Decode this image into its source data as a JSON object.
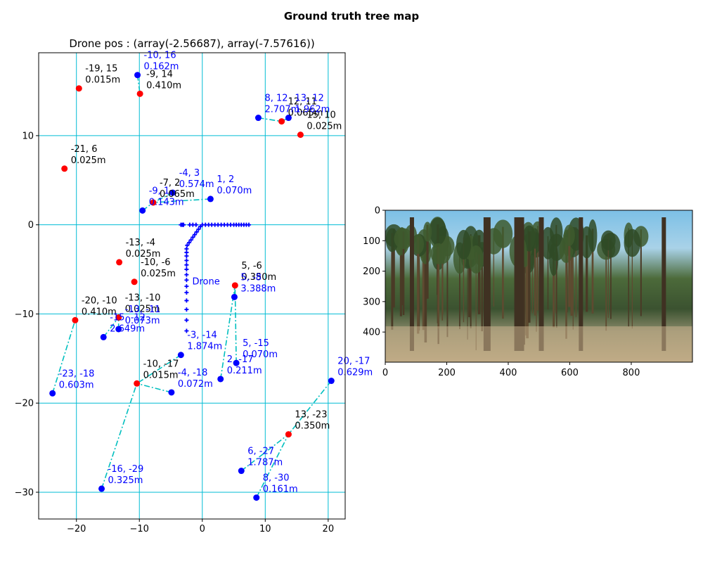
{
  "figure": {
    "suptitle": "Ground truth tree map"
  },
  "colors": {
    "grid": "#00bcd4",
    "red": "#ff0000",
    "blue": "#0000ff",
    "link": "#00bfbf",
    "text_blue": "#0000ff",
    "text_black": "#000000"
  },
  "chart_data": [
    {
      "type": "scatter",
      "title": "Drone pos : (array(-2.56687), array(-7.57616))",
      "xlabel": "",
      "ylabel": "",
      "xlim": [
        -26,
        22.7
      ],
      "ylim": [
        -33,
        19.3
      ],
      "xticks": [
        -20,
        -10,
        0,
        10,
        20
      ],
      "yticks": [
        10,
        0,
        -10,
        -20,
        -30
      ],
      "grid": true,
      "red_trees": [
        {
          "x": -19.6,
          "y": 15.3,
          "label1": "-19, 15",
          "label2": "0.015m"
        },
        {
          "x": -9.9,
          "y": 14.7,
          "label1": "-9, 14",
          "label2": "0.410m"
        },
        {
          "x": -21.9,
          "y": 6.3,
          "label1": "-21, 6",
          "label2": "0.025m"
        },
        {
          "x": -7.8,
          "y": 2.5,
          "label1": "-7, 2",
          "label2": "0.065m"
        },
        {
          "x": 12.6,
          "y": 11.6,
          "label1": "12, 11",
          "label2": "0.065m"
        },
        {
          "x": 15.6,
          "y": 10.1,
          "label1": "15, 10",
          "label2": "0.025m"
        },
        {
          "x": -13.2,
          "y": -4.2,
          "label1": "-13, -4",
          "label2": "0.025m"
        },
        {
          "x": -10.8,
          "y": -6.4,
          "label1": "-10, -6",
          "label2": "0.025m"
        },
        {
          "x": 5.2,
          "y": -6.8,
          "label1": "5, -6",
          "label2": "0.350m"
        },
        {
          "x": -20.2,
          "y": -10.7,
          "label1": "-20, -10",
          "label2": "0.410m"
        },
        {
          "x": -13.3,
          "y": -10.4,
          "label1": "-13, -10",
          "label2": "0.025m"
        },
        {
          "x": -10.4,
          "y": -17.8,
          "label1": "-10, -17",
          "label2": "0.015m"
        },
        {
          "x": 13.7,
          "y": -23.5,
          "label1": "13, -23",
          "label2": "0.350m"
        }
      ],
      "blue_trees": [
        {
          "x": -10.3,
          "y": 16.8,
          "label1": "-10, 16",
          "label2": "0.162m",
          "link_to": [
            -9.9,
            14.7
          ]
        },
        {
          "x": 8.9,
          "y": 12.0,
          "label1": "8, 12",
          "label2": "2.707m",
          "link_to": [
            12.6,
            11.6
          ]
        },
        {
          "x": 13.7,
          "y": 12.0,
          "label1": "13, 12",
          "label2": "1.962m",
          "link_to": [
            12.6,
            11.6
          ]
        },
        {
          "x": -4.7,
          "y": 3.6,
          "label1": "-4, 3",
          "label2": "0.574m",
          "link_to": [
            -7.8,
            2.5
          ]
        },
        {
          "x": 1.3,
          "y": 2.9,
          "label1": "1, 2",
          "label2": "0.070m",
          "link_to": [
            -7.8,
            2.5
          ]
        },
        {
          "x": -9.5,
          "y": 1.6,
          "label1": "-9, 1",
          "label2": "0.143m",
          "link_to": [
            -7.8,
            2.5
          ]
        },
        {
          "x": 5.1,
          "y": -8.1,
          "label1": "5, -8",
          "label2": "3.388m",
          "link_to": [
            5.2,
            -6.8
          ]
        },
        {
          "x": -13.3,
          "y": -11.7,
          "label1": "-13, -11",
          "label2": "0.073m",
          "link_to": [
            -13.3,
            -10.4
          ]
        },
        {
          "x": -15.7,
          "y": -12.6,
          "label1": "-15, -12",
          "label2": "2.649m",
          "link_to": [
            -13.3,
            -10.4
          ]
        },
        {
          "x": -3.4,
          "y": -14.6,
          "label1": "-3, -14",
          "label2": "1.874m",
          "link_to": [
            -10.4,
            -17.8
          ]
        },
        {
          "x": 5.4,
          "y": -15.5,
          "label1": "5, -15",
          "label2": "0.070m",
          "link_to": [
            5.2,
            -6.8
          ]
        },
        {
          "x": 2.9,
          "y": -17.3,
          "label1": "2, -17",
          "label2": "0.211m",
          "link_to": [
            5.2,
            -6.8
          ]
        },
        {
          "x": -4.9,
          "y": -18.8,
          "label1": "-4, -18",
          "label2": "0.072m",
          "link_to": [
            -10.4,
            -17.8
          ]
        },
        {
          "x": -23.8,
          "y": -18.9,
          "label1": "-23, -18",
          "label2": "0.603m",
          "link_to": [
            -20.2,
            -10.7
          ]
        },
        {
          "x": 20.5,
          "y": -17.5,
          "label1": "20, -17",
          "label2": "0.629m",
          "link_to": [
            13.7,
            -23.5
          ]
        },
        {
          "x": 6.2,
          "y": -27.6,
          "label1": "6, -27",
          "label2": "1.787m",
          "link_to": [
            13.7,
            -23.5
          ]
        },
        {
          "x": -16.0,
          "y": -29.6,
          "label1": "-16, -29",
          "label2": "0.325m",
          "link_to": [
            -10.4,
            -17.8
          ]
        },
        {
          "x": 8.6,
          "y": -30.6,
          "label1": "8, -30",
          "label2": "0.161m",
          "link_to": [
            13.7,
            -23.5
          ]
        }
      ],
      "drone_path": [
        [
          7.4,
          0.0
        ],
        [
          7.0,
          0.0
        ],
        [
          6.6,
          0.0
        ],
        [
          6.2,
          0.0
        ],
        [
          5.8,
          0.0
        ],
        [
          5.4,
          0.0
        ],
        [
          5.0,
          0.0
        ],
        [
          4.5,
          0.0
        ],
        [
          4.0,
          0.0
        ],
        [
          3.5,
          0.0
        ],
        [
          3.0,
          0.0
        ],
        [
          2.5,
          0.0
        ],
        [
          2.0,
          0.0
        ],
        [
          1.5,
          0.0
        ],
        [
          1.0,
          0.0
        ],
        [
          0.5,
          0.0
        ],
        [
          0.0,
          0.0
        ],
        [
          -0.3,
          -0.2
        ],
        [
          -0.6,
          -0.5
        ],
        [
          -0.9,
          -0.8
        ],
        [
          -1.2,
          -1.1
        ],
        [
          -1.5,
          -1.4
        ],
        [
          -1.8,
          -1.7
        ],
        [
          -2.1,
          -2.0
        ],
        [
          -2.4,
          -2.3
        ],
        [
          -2.5,
          -2.7
        ],
        [
          -2.5,
          -3.1
        ],
        [
          -2.5,
          -3.5
        ],
        [
          -2.5,
          -4.0
        ],
        [
          -2.5,
          -4.5
        ],
        [
          -2.5,
          -5.0
        ],
        [
          -2.5,
          -5.6
        ],
        [
          -2.5,
          -6.2
        ],
        [
          -2.5,
          -6.9
        ],
        [
          -2.5,
          -7.6
        ],
        [
          -2.5,
          -8.5
        ],
        [
          -2.5,
          -9.5
        ],
        [
          -2.5,
          -10.7
        ],
        [
          -2.5,
          -11.9
        ],
        [
          -3.0,
          0.0
        ],
        [
          -3.2,
          0.0
        ],
        [
          -3.4,
          0.0
        ],
        [
          -3.0,
          0.0
        ],
        [
          -2.0,
          0.0
        ],
        [
          -1.5,
          0.0
        ],
        [
          -1.0,
          0.0
        ]
      ],
      "drone_label": {
        "x": -1.6,
        "y": -6.3,
        "text": "Drone"
      }
    },
    {
      "type": "heatmap",
      "title": "",
      "xlim": [
        0,
        999
      ],
      "ylim": [
        499,
        0
      ],
      "xticks": [
        0,
        200,
        400,
        600,
        800
      ],
      "yticks": [
        0,
        100,
        200,
        300,
        400
      ],
      "content": "equirectangular forest panorama"
    }
  ]
}
